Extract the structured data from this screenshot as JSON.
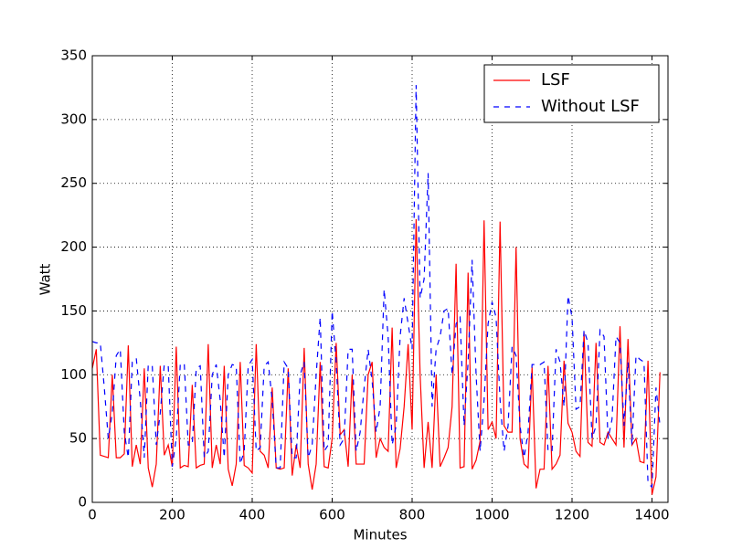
{
  "chart_data": {
    "type": "line",
    "xlabel": "Minutes",
    "ylabel": "Watt",
    "xlim": [
      0,
      1440
    ],
    "ylim": [
      0,
      350
    ],
    "xticks": [
      0,
      200,
      400,
      600,
      800,
      1000,
      1200,
      1400
    ],
    "yticks": [
      0,
      50,
      100,
      150,
      200,
      250,
      300,
      350
    ],
    "grid": true,
    "legend": "upper right",
    "x": [
      0,
      10,
      20,
      30,
      40,
      50,
      60,
      70,
      80,
      90,
      100,
      110,
      120,
      130,
      140,
      150,
      160,
      170,
      180,
      190,
      200,
      210,
      220,
      230,
      240,
      250,
      260,
      270,
      280,
      290,
      300,
      310,
      320,
      330,
      340,
      350,
      360,
      370,
      380,
      390,
      400,
      410,
      420,
      430,
      440,
      450,
      460,
      470,
      480,
      490,
      500,
      510,
      520,
      530,
      540,
      550,
      560,
      570,
      580,
      590,
      600,
      610,
      620,
      630,
      640,
      650,
      660,
      670,
      680,
      690,
      700,
      710,
      720,
      730,
      740,
      750,
      760,
      770,
      780,
      790,
      800,
      810,
      820,
      830,
      840,
      850,
      860,
      870,
      880,
      890,
      900,
      910,
      920,
      930,
      940,
      950,
      960,
      970,
      980,
      990,
      1000,
      1010,
      1020,
      1030,
      1040,
      1050,
      1060,
      1070,
      1080,
      1090,
      1100,
      1110,
      1120,
      1130,
      1140,
      1150,
      1160,
      1170,
      1180,
      1190,
      1200,
      1210,
      1220,
      1230,
      1240,
      1250,
      1260,
      1270,
      1280,
      1290,
      1300,
      1310,
      1320,
      1330,
      1340,
      1350,
      1360,
      1370,
      1380,
      1390,
      1400,
      1410,
      1420
    ],
    "series": [
      {
        "name": "LSF",
        "color": "#ff0000",
        "dash": "solid",
        "values": [
          105,
          120,
          37,
          36,
          35,
          100,
          35,
          35,
          38,
          123,
          28,
          45,
          30,
          105,
          27,
          12,
          30,
          107,
          37,
          45,
          28,
          122,
          27,
          29,
          28,
          92,
          27,
          29,
          30,
          124,
          27,
          45,
          30,
          107,
          26,
          13,
          30,
          110,
          29,
          27,
          23,
          124,
          40,
          37,
          27,
          90,
          27,
          26,
          27,
          105,
          21,
          45,
          27,
          121,
          30,
          10,
          30,
          110,
          28,
          27,
          50,
          125,
          53,
          57,
          28,
          100,
          30,
          30,
          30,
          100,
          110,
          35,
          50,
          43,
          40,
          137,
          27,
          42,
          75,
          124,
          57,
          222,
          100,
          27,
          63,
          27,
          100,
          28,
          35,
          43,
          75,
          187,
          27,
          28,
          180,
          26,
          33,
          48,
          221,
          57,
          63,
          50,
          220,
          60,
          55,
          55,
          200,
          50,
          30,
          27,
          106,
          11,
          26,
          26,
          107,
          26,
          30,
          37,
          111,
          62,
          55,
          40,
          36,
          133,
          47,
          44,
          125,
          47,
          45,
          55,
          50,
          45,
          138,
          43,
          128,
          45,
          50,
          32,
          31,
          111,
          6,
          20,
          102
        ]
      },
      {
        "name": "Without LSF",
        "color": "#0000ff",
        "dash": "dashed",
        "values": [
          126,
          125,
          125,
          90,
          50,
          70,
          115,
          120,
          55,
          35,
          110,
          113,
          80,
          35,
          108,
          107,
          45,
          70,
          108,
          107,
          28,
          50,
          108,
          109,
          45,
          45,
          105,
          107,
          35,
          40,
          100,
          108,
          80,
          35,
          100,
          108,
          107,
          30,
          40,
          107,
          112,
          40,
          43,
          107,
          110,
          80,
          27,
          27,
          110,
          105,
          35,
          35,
          100,
          110,
          35,
          45,
          100,
          145,
          40,
          45,
          150,
          110,
          45,
          50,
          120,
          120,
          40,
          55,
          90,
          120,
          95,
          55,
          75,
          167,
          130,
          45,
          60,
          130,
          160,
          140,
          120,
          327,
          160,
          175,
          258,
          75,
          120,
          130,
          150,
          152,
          100,
          140,
          145,
          60,
          110,
          190,
          100,
          40,
          80,
          140,
          157,
          145,
          80,
          40,
          60,
          122,
          115,
          60,
          35,
          55,
          108,
          108,
          108,
          110,
          40,
          40,
          120,
          110,
          75,
          162,
          145,
          73,
          75,
          135,
          125,
          50,
          60,
          135,
          130,
          50,
          65,
          130,
          125,
          60,
          110,
          45,
          115,
          112,
          110,
          15,
          12,
          90,
          60
        ]
      }
    ]
  }
}
